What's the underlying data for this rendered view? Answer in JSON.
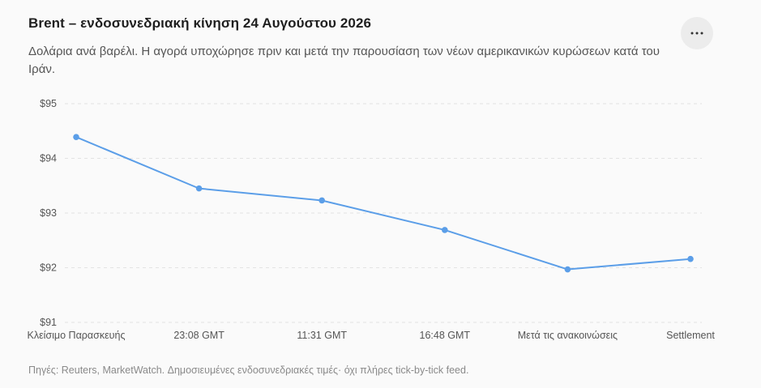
{
  "header": {
    "title": "Brent – ενδοσυνεδριακή κίνηση 24 Αυγούστου 2026",
    "subtitle": "Δολάρια ανά βαρέλι. Η αγορά υποχώρησε πριν και μετά την παρουσίαση των νέων αμερικανικών κυρώσεων κατά του Ιράν.",
    "more_icon": "more-horizontal-icon"
  },
  "footer": {
    "source": "Πηγές: Reuters, MarketWatch. Δημοσιευμένες ενδοσυνεδριακές τιμές· όχι πλήρες tick-by-tick feed."
  },
  "colors": {
    "line": "#5b9ee8",
    "grid": "#e3e3e3"
  },
  "chart_data": {
    "type": "line",
    "categories": [
      "Κλείσιμο Παρασκευής",
      "23:08 GMT",
      "11:31 GMT",
      "16:48 GMT",
      "Μετά τις ανακοινώσεις",
      "Settlement"
    ],
    "values": [
      94.39,
      93.45,
      93.23,
      92.69,
      91.97,
      92.16
    ],
    "ylim": [
      91,
      95
    ],
    "yticks": [
      95,
      94,
      93,
      92,
      91
    ],
    "ytick_labels": [
      "$95",
      "$94",
      "$93",
      "$92",
      "$91"
    ],
    "grid": true,
    "legend": "none"
  }
}
